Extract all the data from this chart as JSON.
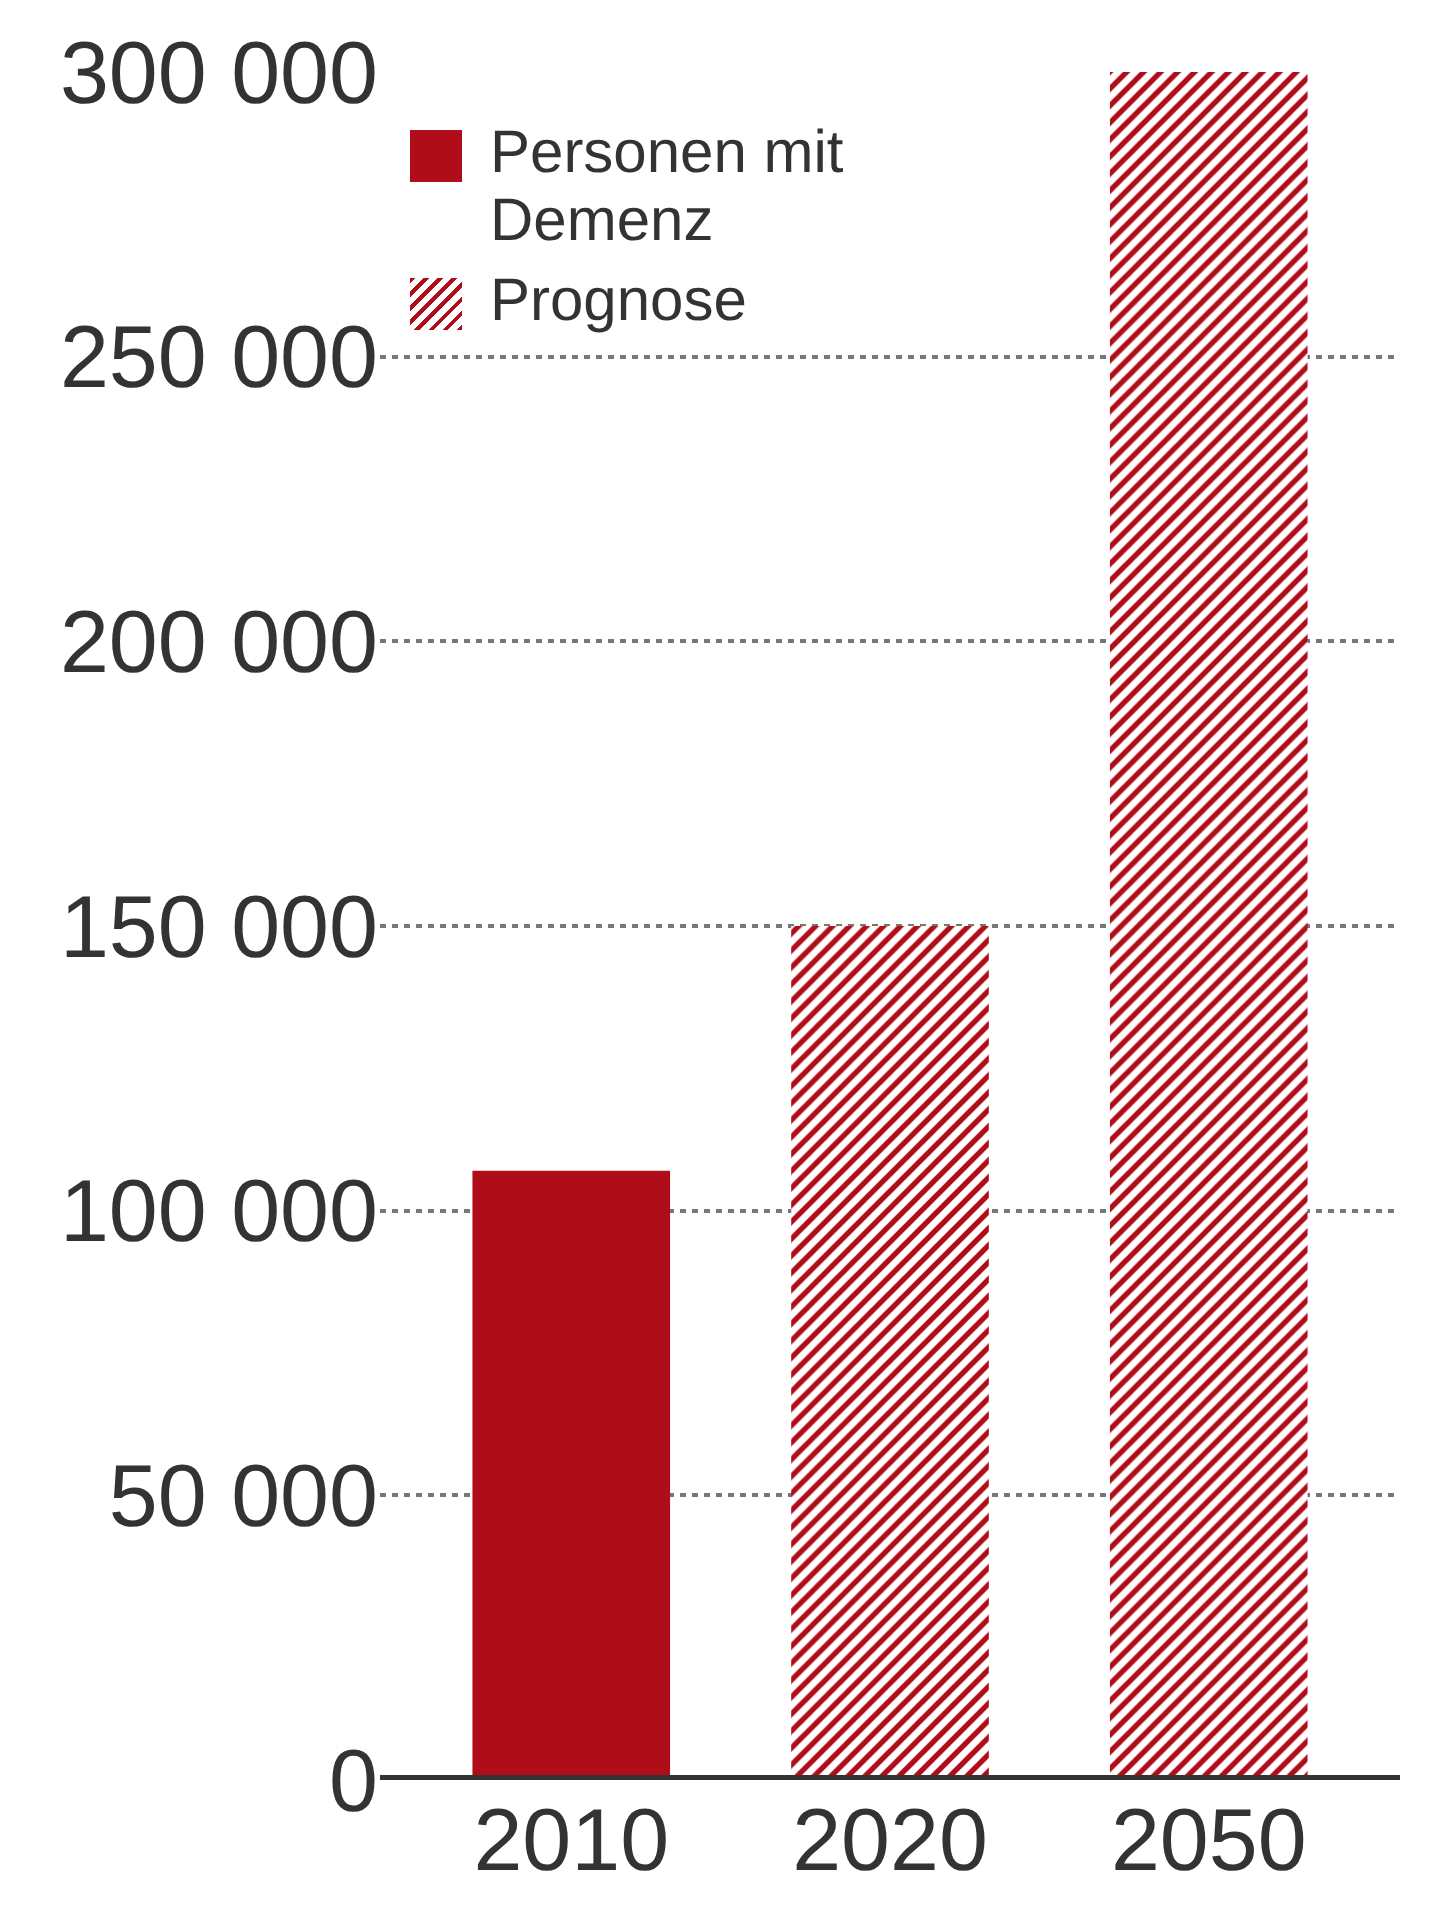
{
  "chart_data": {
    "type": "bar",
    "categories": [
      "2010",
      "2020",
      "2050"
    ],
    "series": [
      {
        "name": "Personen mit Demenz",
        "color": "#b00d1a",
        "values": [
          107000,
          null,
          null
        ]
      },
      {
        "name": "Prognose",
        "color": "#b00d1a",
        "values": [
          null,
          150000,
          300000
        ]
      }
    ],
    "ylim": [
      0,
      300000
    ],
    "yticks": [
      {
        "value": 0,
        "label": "0"
      },
      {
        "value": 50000,
        "label": "50 000"
      },
      {
        "value": 100000,
        "label": "100 000"
      },
      {
        "value": 150000,
        "label": "150 000"
      },
      {
        "value": 200000,
        "label": "200 000"
      },
      {
        "value": 250000,
        "label": "250 000"
      },
      {
        "value": 300000,
        "label": "300 000"
      }
    ],
    "grid": "y",
    "legend": "top left"
  }
}
